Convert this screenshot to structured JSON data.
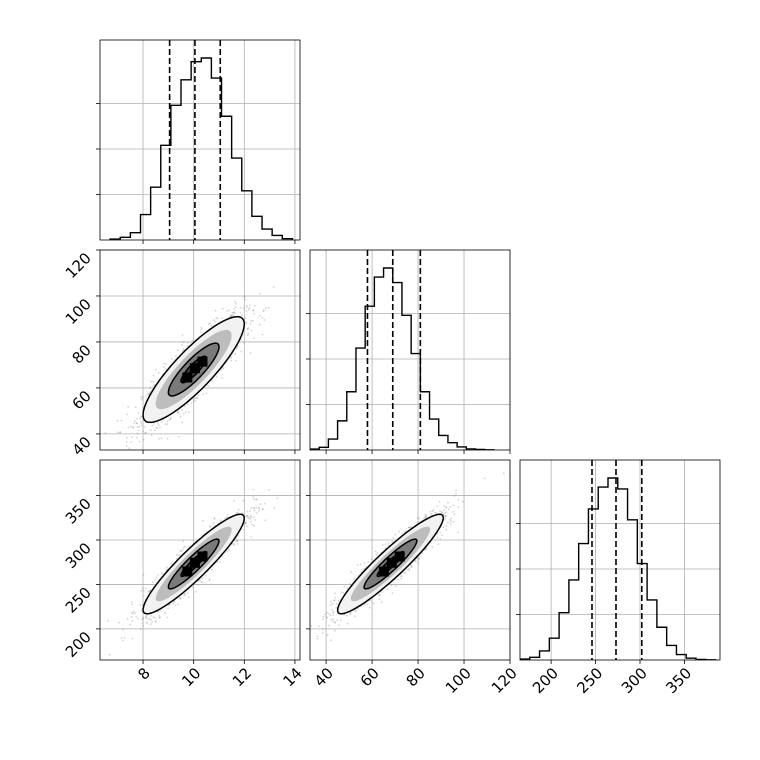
{
  "chart_data": {
    "type": "corner",
    "parameters": [
      {
        "axis_range": [
          6.3,
          14.2
        ],
        "ticks": [
          8,
          10,
          12,
          14
        ],
        "tick_labels": [
          "8",
          "10",
          "12",
          "14"
        ],
        "quantiles": [
          9.05,
          10.05,
          11.05
        ],
        "hist_bins": [
          6.7,
          7.1,
          7.5,
          7.9,
          8.3,
          8.7,
          9.1,
          9.5,
          9.9,
          10.3,
          10.7,
          11.1,
          11.5,
          11.9,
          12.3,
          12.7,
          13.1,
          13.5,
          13.9
        ],
        "hist_counts": [
          0.005,
          0.015,
          0.04,
          0.14,
          0.29,
          0.52,
          0.74,
          0.88,
          0.98,
          1.0,
          0.89,
          0.68,
          0.45,
          0.27,
          0.13,
          0.06,
          0.025,
          0.007
        ]
      },
      {
        "axis_range": [
          33,
          120
        ],
        "ticks": [
          40,
          60,
          80,
          100,
          120
        ],
        "tick_labels": [
          "40",
          "60",
          "80",
          "100",
          "120"
        ],
        "quantiles": [
          58,
          69,
          81
        ],
        "hist_bins": [
          33,
          37,
          41,
          45,
          49,
          53,
          57,
          61,
          65,
          69,
          73,
          77,
          81,
          85,
          89,
          93,
          97,
          101,
          105,
          109,
          113
        ],
        "hist_counts": [
          0.005,
          0.015,
          0.06,
          0.16,
          0.32,
          0.56,
          0.79,
          0.95,
          1.0,
          0.92,
          0.74,
          0.53,
          0.32,
          0.17,
          0.08,
          0.04,
          0.017,
          0.006,
          0.003,
          0.001
        ]
      },
      {
        "axis_range": [
          165,
          390
        ],
        "ticks": [
          200,
          250,
          300,
          350
        ],
        "tick_labels": [
          "200",
          "250",
          "300",
          "350"
        ],
        "quantiles": [
          246,
          273,
          302
        ],
        "hist_bins": [
          165,
          176,
          187,
          198,
          209,
          220,
          231,
          242,
          253,
          264,
          275,
          286,
          297,
          308,
          319,
          330,
          341,
          352,
          363,
          374,
          385
        ],
        "hist_counts": [
          0.005,
          0.015,
          0.05,
          0.12,
          0.26,
          0.44,
          0.64,
          0.83,
          0.95,
          1.0,
          0.94,
          0.77,
          0.53,
          0.33,
          0.18,
          0.08,
          0.03,
          0.01,
          0.003,
          0.001
        ]
      }
    ],
    "correlations": [
      {
        "x": 0,
        "y": 1,
        "mean_x": 10.0,
        "mean_y": 68,
        "sd_x": 1.0,
        "sd_y": 11.5,
        "rho": 0.86
      },
      {
        "x": 0,
        "y": 2,
        "mean_x": 10.0,
        "mean_y": 273,
        "sd_x": 1.0,
        "sd_y": 28,
        "rho": 0.92
      },
      {
        "x": 1,
        "y": 2,
        "mean_x": 68,
        "mean_y": 273,
        "sd_x": 11.5,
        "sd_y": 28,
        "rho": 0.93
      }
    ],
    "contour_levels_sigma": [
      0.5,
      1.0,
      1.5,
      2.0
    ],
    "grid": true
  }
}
